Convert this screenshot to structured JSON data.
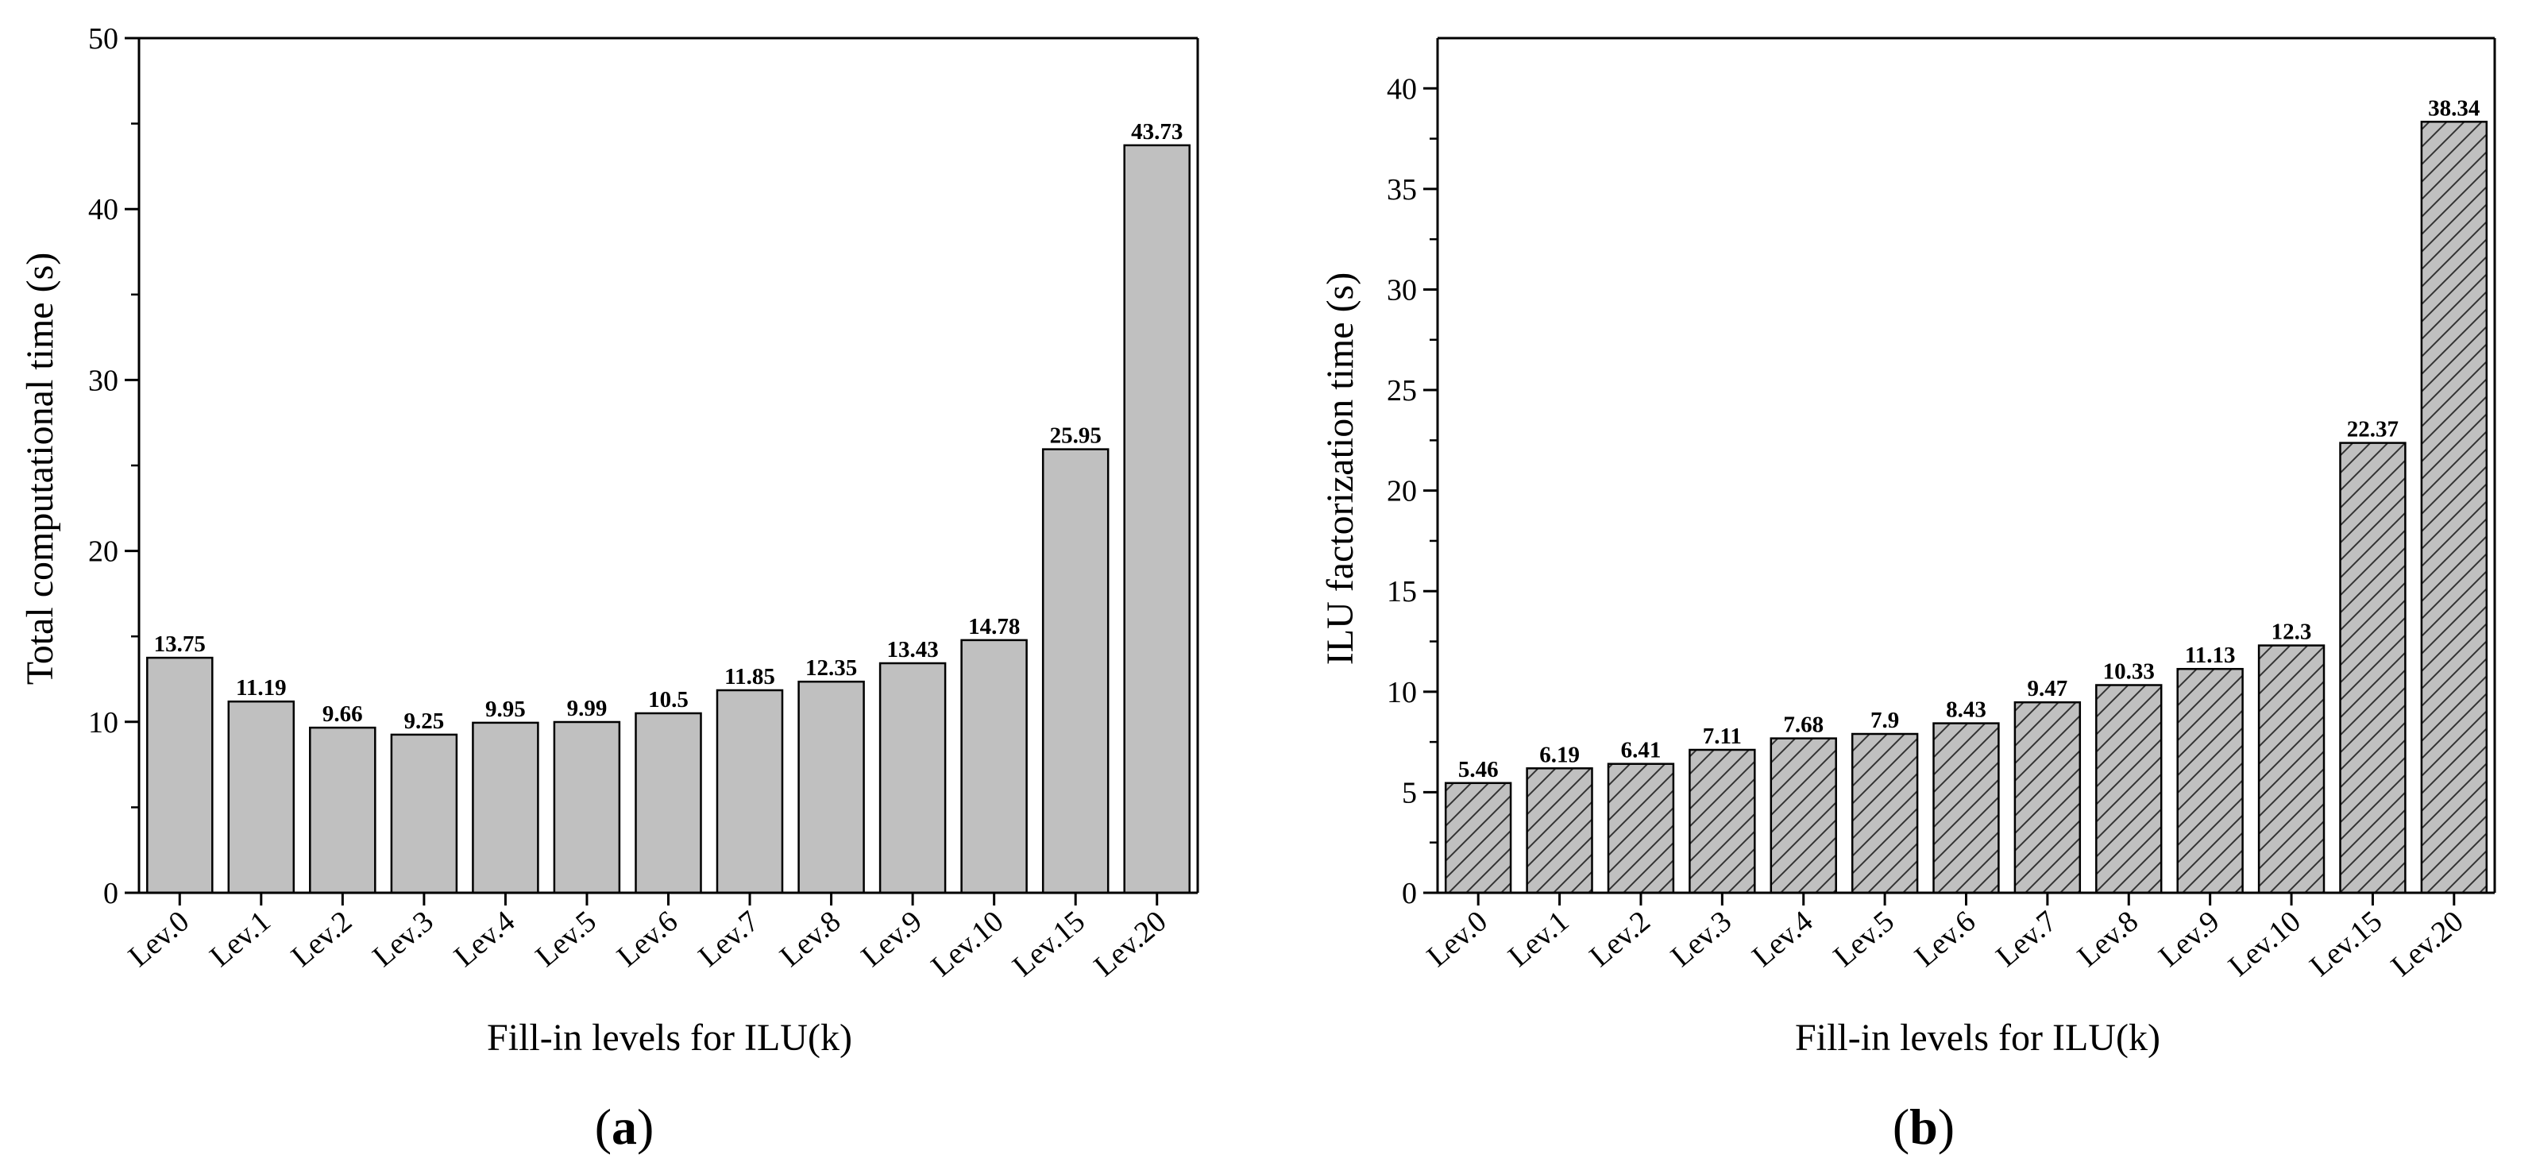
{
  "figure": {
    "panels": [
      {
        "open": "(",
        "letter": "a",
        "close": ")"
      },
      {
        "open": "(",
        "letter": "b",
        "close": ")"
      }
    ]
  },
  "chart_data": [
    {
      "type": "bar",
      "title": "",
      "xlabel": "Fill-in levels for ILU(k)",
      "ylabel": "Total computational time (s)",
      "categories": [
        "Lev.0",
        "Lev.1",
        "Lev.2",
        "Lev.3",
        "Lev.4",
        "Lev.5",
        "Lev.6",
        "Lev.7",
        "Lev.8",
        "Lev.9",
        "Lev.10",
        "Lev.15",
        "Lev.20"
      ],
      "values": [
        13.75,
        11.19,
        9.66,
        9.25,
        9.95,
        9.99,
        10.5,
        11.85,
        12.35,
        13.43,
        14.78,
        25.95,
        43.73
      ],
      "value_labels": [
        "13.75",
        "11.19",
        "9.66",
        "9.25",
        "9.95",
        "9.99",
        "10.5",
        "11.85",
        "12.35",
        "13.43",
        "14.78",
        "25.95",
        "43.73"
      ],
      "ylim": [
        0,
        50
      ],
      "yticks": [
        0,
        10,
        20,
        30,
        40,
        50
      ],
      "y_minor_step": 5,
      "bar_fill": "#c0c0c0",
      "bar_pattern": "solid",
      "grid": false
    },
    {
      "type": "bar",
      "title": "",
      "xlabel": "Fill-in levels for ILU(k)",
      "ylabel": "ILU factorization time (s)",
      "categories": [
        "Lev.0",
        "Lev.1",
        "Lev.2",
        "Lev.3",
        "Lev.4",
        "Lev.5",
        "Lev.6",
        "Lev.7",
        "Lev.8",
        "Lev.9",
        "Lev.10",
        "Lev.15",
        "Lev.20"
      ],
      "values": [
        5.46,
        6.19,
        6.41,
        7.11,
        7.68,
        7.9,
        8.43,
        9.47,
        10.33,
        11.13,
        12.3,
        22.37,
        38.34
      ],
      "value_labels": [
        "5.46",
        "6.19",
        "6.41",
        "7.11",
        "7.68",
        "7.9",
        "8.43",
        "9.47",
        "10.33",
        "11.13",
        "12.3",
        "22.37",
        "38.34"
      ],
      "ylim": [
        0,
        42.5
      ],
      "yticks": [
        0,
        5,
        10,
        15,
        20,
        25,
        30,
        35,
        40
      ],
      "y_minor_step": 2.5,
      "bar_fill": "#c0c0c0",
      "bar_pattern": "diagonal-hatch",
      "grid": false
    }
  ]
}
